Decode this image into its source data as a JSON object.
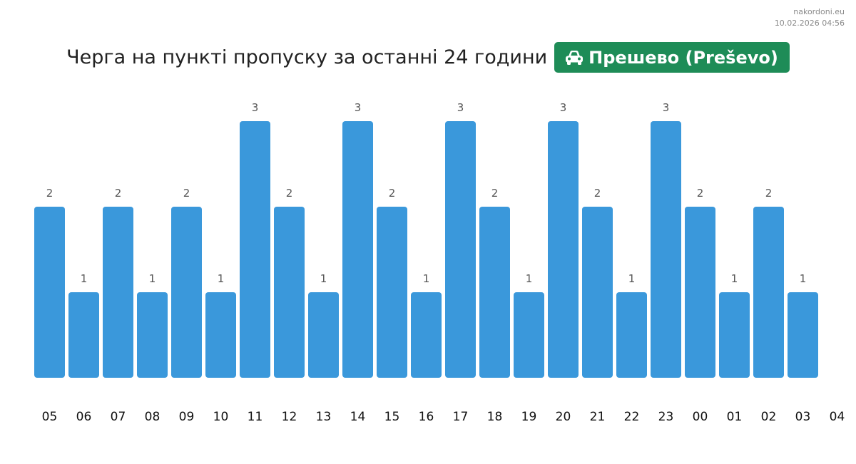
{
  "site": {
    "name": "nakordoni.eu",
    "timestamp": "10.02.2026 04:56"
  },
  "header": {
    "title": "Черга на пункті пропуску за останні 24 години",
    "checkpoint": "Прешево (Preševo)",
    "icon": "car-icon"
  },
  "colors": {
    "bar": "#3a98db",
    "badge": "#1e8c57",
    "value_label": "#555555",
    "tick_label": "#111111"
  },
  "chart_data": {
    "type": "bar",
    "categories": [
      "05",
      "06",
      "07",
      "08",
      "09",
      "10",
      "11",
      "12",
      "13",
      "14",
      "15",
      "16",
      "17",
      "18",
      "19",
      "20",
      "21",
      "22",
      "23",
      "00",
      "01",
      "02",
      "03"
    ],
    "values": [
      2,
      1,
      2,
      1,
      2,
      1,
      3,
      2,
      1,
      3,
      2,
      1,
      3,
      2,
      1,
      3,
      2,
      1,
      3,
      2,
      1,
      2,
      1
    ],
    "tick_labels": [
      "05",
      "06",
      "07",
      "08",
      "09",
      "10",
      "11",
      "12",
      "13",
      "14",
      "15",
      "16",
      "17",
      "18",
      "19",
      "20",
      "21",
      "22",
      "23",
      "00",
      "01",
      "02",
      "03",
      "04"
    ],
    "ylim": [
      0,
      3
    ],
    "grid": false,
    "legend": "none",
    "data_labels": true
  }
}
